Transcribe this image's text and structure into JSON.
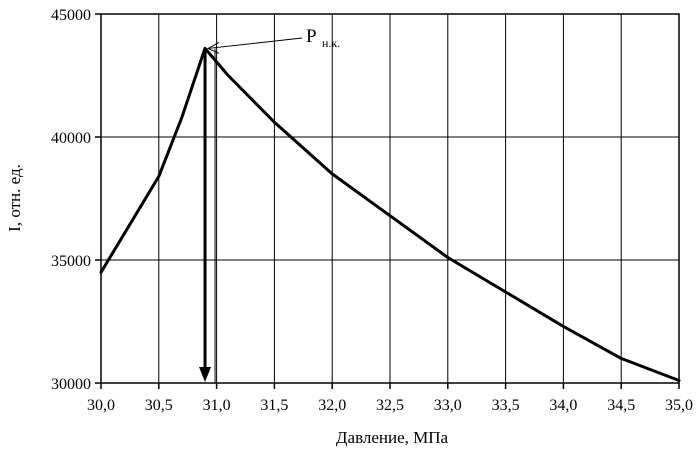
{
  "chart_data": {
    "type": "line",
    "title": "",
    "xlabel": "Давление, МПа",
    "ylabel": "I, отн. ед.",
    "xlim": [
      30.0,
      35.0
    ],
    "ylim": [
      30000,
      45000
    ],
    "x_ticks": [
      30.0,
      30.5,
      31.0,
      31.5,
      32.0,
      32.5,
      33.0,
      33.5,
      34.0,
      34.5,
      35.0
    ],
    "x_tick_labels": [
      "30,0",
      "30,5",
      "31,0",
      "31,5",
      "32,0",
      "32,5",
      "33,0",
      "33,5",
      "34,0",
      "34,5",
      "35,0"
    ],
    "y_ticks": [
      30000,
      35000,
      40000,
      45000
    ],
    "y_tick_labels": [
      "30000",
      "35000",
      "40000",
      "45000"
    ],
    "grid": true,
    "legend": "none",
    "series": [
      {
        "x": [
          30.0,
          30.5,
          30.7,
          30.9,
          31.1,
          31.5,
          32.0,
          32.5,
          33.0,
          33.5,
          34.0,
          34.5,
          35.0
        ],
        "y": [
          34500,
          38400,
          40800,
          43600,
          42500,
          40600,
          38500,
          36800,
          35100,
          33700,
          32300,
          31000,
          30100
        ],
        "color": "#000000"
      }
    ],
    "annotation": {
      "main": "Р",
      "subscript": "н.к.",
      "x": 30.9,
      "y": 43600
    },
    "marker_x": 30.9
  }
}
